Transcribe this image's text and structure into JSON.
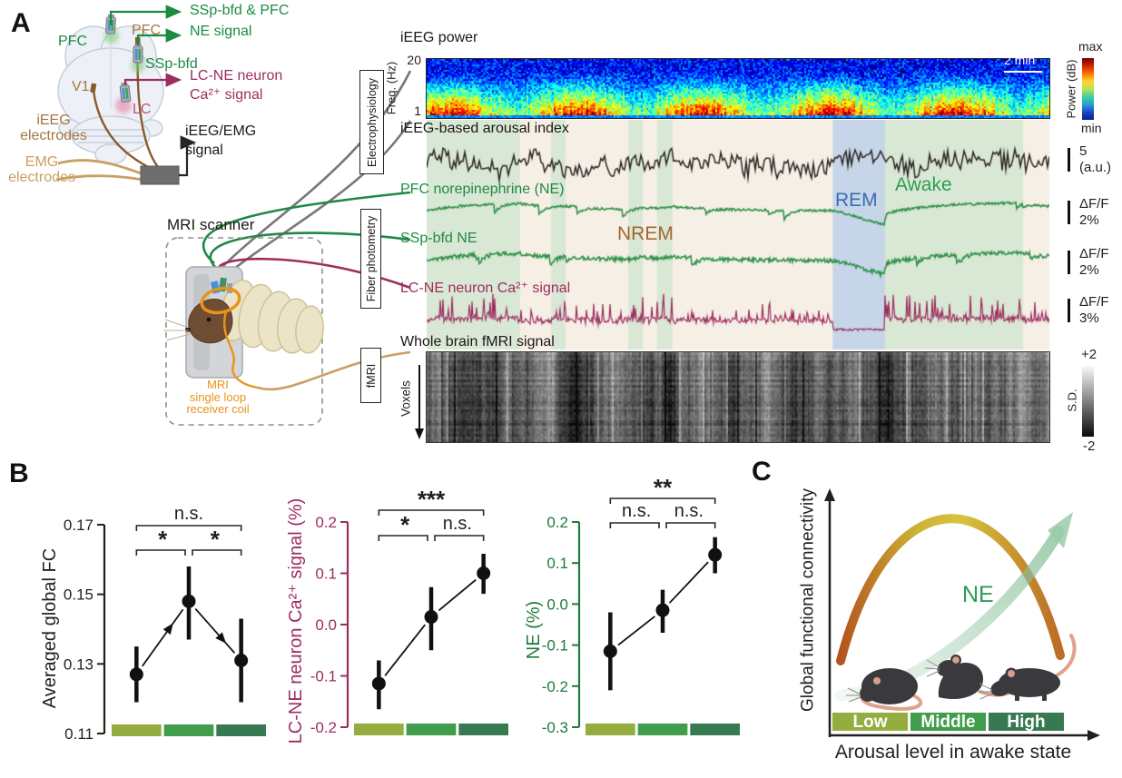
{
  "panel_a": {
    "label": "A",
    "brain": {
      "pfc_fiber": "PFC",
      "pfc_electrode": "PFC",
      "ssp_bfd": "SSp-bfd",
      "v1": "V1",
      "lc": "LC",
      "ieeg_electrodes_1": "iEEG",
      "ieeg_electrodes_2": "electrodes",
      "emg_electrodes_1": "EMG",
      "emg_electrodes_2": "electrodes",
      "ne_signal_out_1": "SSp-bfd & PFC",
      "ne_signal_out_2": "NE signal",
      "ca_signal_out_1": "LC-NE neuron",
      "ca_signal_out_2": "Ca²⁺ signal",
      "eeg_signal_out_1": "iEEG/EMG",
      "eeg_signal_out_2": "signal"
    },
    "scanner": {
      "title": "MRI scanner",
      "coil_label_1": "MRI",
      "coil_label_2": "single loop",
      "coil_label_3": "receiver coil"
    },
    "boxes": {
      "electrophysiology": "Electrophysiology",
      "fiber_photometry": "Fiber photometry",
      "fmri": "fMRI"
    },
    "traces": {
      "spectrogram_title": "iEEG power",
      "freq_top": "20",
      "freq_bottom": "1",
      "freq_axis": "Freq. (Hz)",
      "time_scalebar": "2 min",
      "colorbar": {
        "top": "max",
        "bottom": "min",
        "label": "Power (dB)"
      },
      "rows": [
        {
          "label": "iEEG-based arousal index",
          "scale_1": "5",
          "scale_2": "(a.u.)"
        },
        {
          "label": "PFC norepinephrine (NE)",
          "scale_1": "ΔF/F",
          "scale_2": "2%"
        },
        {
          "label": "SSp-bfd NE",
          "scale_1": "ΔF/F",
          "scale_2": "2%"
        },
        {
          "label": "LC-NE neuron Ca²⁺ signal",
          "scale_1": "ΔF/F",
          "scale_2": "3%"
        }
      ],
      "states": {
        "nrem": "NREM",
        "rem": "REM",
        "awake": "Awake"
      },
      "fmri": {
        "label": "Whole brain fMRI signal",
        "voxels": "Voxels",
        "sd_top": "+2",
        "sd_bottom": "-2",
        "sd_label": "S.D."
      }
    }
  },
  "chart_data": {
    "panel_a": {
      "type": "line",
      "description": "Simultaneous iEEG, fiber photometry and fMRI recordings across sleep-wake states",
      "bands": {
        "awake_green": [
          [
            0.0,
            0.15
          ],
          [
            0.2,
            0.223
          ],
          [
            0.324,
            0.347
          ],
          [
            0.37,
            0.395
          ],
          [
            0.736,
            0.958
          ]
        ],
        "rem_blue": [
          [
            0.652,
            0.736
          ]
        ]
      },
      "spectrogram": {
        "freq_range_hz": [
          1,
          20
        ],
        "colormap": "jet",
        "time_scalebar_min": 2
      },
      "series": [
        {
          "name": "iEEG-based arousal index",
          "color": "#2b2623",
          "scalebar": "5 (a.u.)",
          "character": "high-frequency fluctuations, elevated during REM"
        },
        {
          "name": "PFC norepinephrine (NE)",
          "color": "#2e9248",
          "scalebar": "ΔF/F 2%",
          "character": "phasic dips in NREM, steady decline through REM, sharp rise then sustained high after waking"
        },
        {
          "name": "SSp-bfd NE",
          "color": "#2e9248",
          "scalebar": "ΔF/F 2%",
          "character": "same pattern as PFC NE with more noise"
        },
        {
          "name": "LC-NE neuron Ca²⁺ signal",
          "color": "#9c2d5f",
          "scalebar": "ΔF/F 3%",
          "character": "phasic bursts in NREM, silent flat during REM, dense tall bursts in Awake"
        },
        {
          "name": "Whole brain fMRI signal",
          "color": "grayscale",
          "scalebar": "S.D. +2 to -2",
          "character": "voxels-by-time carpet plot with vertical streaks"
        }
      ]
    },
    "panel_b": {
      "label": "B",
      "type": "scatter",
      "x_categories": [
        "Low",
        "Middle",
        "High"
      ],
      "group_colors": [
        "#93ad3f",
        "#3f9d4b",
        "#377a52"
      ],
      "plots": [
        {
          "ylabel": "Averaged global FC",
          "axis_color": "#231f1d",
          "ylim": [
            0.11,
            0.17
          ],
          "yticks": [
            "0.17",
            "0.15",
            "0.13",
            "0.11"
          ],
          "values": [
            0.127,
            0.148,
            0.131
          ],
          "err_low": [
            0.119,
            0.137,
            0.119
          ],
          "err_high": [
            0.135,
            0.158,
            0.143
          ],
          "sig_outer": "n.s.",
          "sig_left": "*",
          "sig_right": "*",
          "arrows": true
        },
        {
          "ylabel": "LC-NE neuron Ca²⁺ signal (%)",
          "axis_color": "#9c2d5f",
          "ylim": [
            -0.2,
            0.2
          ],
          "yticks": [
            "0.2",
            "0.1",
            "0.0",
            "-0.1",
            "-0.2"
          ],
          "values": [
            -0.115,
            0.015,
            0.1
          ],
          "err_low": [
            -0.165,
            -0.05,
            0.06
          ],
          "err_high": [
            -0.07,
            0.073,
            0.138
          ],
          "sig_outer": "***",
          "sig_left": "*",
          "sig_right": "n.s.",
          "arrows": false
        },
        {
          "ylabel": "NE (%)",
          "axis_color": "#1f7a3c",
          "ylim": [
            -0.3,
            0.2
          ],
          "yticks": [
            "0.2",
            "0.1",
            "0.0",
            "-0.1",
            "-0.2",
            "-0.3"
          ],
          "values": [
            -0.115,
            -0.015,
            0.12
          ],
          "err_low": [
            -0.21,
            -0.07,
            0.075
          ],
          "err_high": [
            -0.02,
            0.035,
            0.163
          ],
          "sig_outer": "**",
          "sig_left": "n.s.",
          "sig_right": "n.s.",
          "arrows": false
        }
      ]
    },
    "panel_c": {
      "label": "C",
      "type": "diagram",
      "ylabel": "Global functional connectivity",
      "xlabel": "Arousal level in awake state",
      "ne_label": "NE",
      "categories": [
        "Low",
        "Middle",
        "High"
      ],
      "bar_colors": [
        "#93ad3f",
        "#3f9d4b",
        "#377a52"
      ],
      "curve": "inverted-U relationship between arousal level and global FC",
      "ne_curve": "monotonically increasing NE level with arousal"
    }
  },
  "colors": {
    "green_text": "#1a8c42",
    "maroon": "#9c2d5f",
    "brown": "#a5763f",
    "tan": "#c9a063",
    "orange": "#e8941a",
    "nrem_brown": "#a0662e",
    "rem_blue": "#3a6cb5",
    "awake_green": "#2d9e50",
    "band_green": "#d9e7d5",
    "band_cream": "#f6efe6",
    "band_rem": "#c6d6e8",
    "trace_black": "#2b2623",
    "trace_green": "#2e9248",
    "lc_pink": "#bf4f82"
  }
}
